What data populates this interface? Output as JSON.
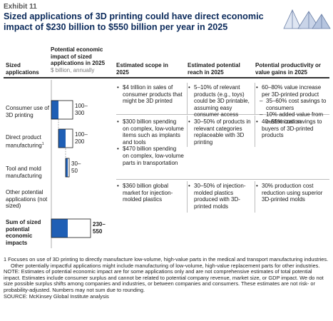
{
  "exhibit": "Exhibit 11",
  "title": "Sized applications of 3D printing could have direct economic impact of $230 billion to $550 billion per year in 2025",
  "headers": {
    "col1": "Sized applications",
    "col2": "Potential economic impact of sized applications in 2025",
    "col2_sub": "$ billion, annually",
    "col3": "Estimated scope in 2025",
    "col4": "Estimated potential reach in 2025",
    "col5": "Potential productivity or value gains in 2025"
  },
  "rows": [
    {
      "label": "Consumer use of 3D printing",
      "range_label": "100–300",
      "scope": [
        "$4 trillion in sales of consumer products that might be 3D printed"
      ],
      "reach": [
        "5–10% of relevant products (e.g., toys) could be 3D printable, assuming easy consumer access"
      ],
      "gains": [
        "60–80% value increase per 3D-printed product"
      ],
      "gains_sub": [
        "35–60% cost savings to consumers",
        "10% added value from customization"
      ]
    },
    {
      "label": "Direct product manufacturing",
      "footnote_mark": "1",
      "range_label": "100–200",
      "scope": [
        "$300 billion spending on complex, low-volume items such as implants and tools",
        "$470 billion spending on complex, low-volume parts in transportation"
      ],
      "reach": [
        "30–50% of products in relevant categories replaceable with 3D printing"
      ],
      "gains": [
        "40–55% cost savings to buyers of 3D-printed products"
      ],
      "gains_sub": []
    },
    {
      "label": "Tool and mold manufacturing",
      "range_label": "30–50",
      "scope": [
        "$360 billion global market for injection-molded plastics"
      ],
      "reach": [
        "30–50% of injection-molded plastics produced with 3D-printed molds"
      ],
      "gains": [
        "30% production cost reduction using superior 3D-printed molds"
      ],
      "gains_sub": []
    },
    {
      "label": "Other potential applications (not sized)",
      "range_label": "",
      "scope": [],
      "reach": [],
      "gains": [],
      "gains_sub": []
    },
    {
      "label": "Sum of sized potential economic impacts",
      "range_label": "230–550",
      "scope": [],
      "reach": [],
      "gains": [],
      "gains_sub": []
    }
  ],
  "chart_data": {
    "type": "bar",
    "title": "Sized applications of 3D printing could have direct economic impact of $230 billion to $550 billion per year in 2025",
    "xlabel": "Potential economic impact of sized applications in 2025",
    "ylabel": "$ billion, annually",
    "categories": [
      "Consumer use of 3D printing",
      "Direct product manufacturing",
      "Tool and mold manufacturing",
      "Sum of sized potential economic impacts"
    ],
    "bars": [
      {
        "category": "Consumer use of 3D printing",
        "offset": 0,
        "low": 100,
        "high": 300,
        "label": "100–300"
      },
      {
        "category": "Direct product manufacturing",
        "offset": 100,
        "low": 100,
        "high": 200,
        "label": "100–200"
      },
      {
        "category": "Tool and mold manufacturing",
        "offset": 200,
        "low": 30,
        "high": 50,
        "label": "30–50"
      },
      {
        "category": "Sum of sized potential economic impacts",
        "offset": 0,
        "low": 230,
        "high": 550,
        "label": "230–550"
      }
    ],
    "colors": {
      "low": "#1f5fb5",
      "range": "#ffffff",
      "outline": "#1a1a1a"
    }
  },
  "footer": {
    "footnote": "1  Focuses on use of 3D printing to directly manufacture low-volume, high-value parts in the medical and transport manufacturing industries. Other potentially impactful applications might include manufacturing of low-volume, high-value replacement parts for other industries.",
    "note": "NOTE: Estimates of potential economic impact are for some applications only and are not comprehensive estimates of total potential impact. Estimates include consumer surplus and cannot be related to potential company revenue, market size, or GDP impact. We do not size possible surplus shifts among companies and industries, or between companies and consumers. These estimates are not risk- or probability-adjusted. Numbers may not sum due to rounding.",
    "source": "SOURCE: McKinsey Global Institute analysis"
  },
  "logo_icon": "mgi-pyramids-logo"
}
